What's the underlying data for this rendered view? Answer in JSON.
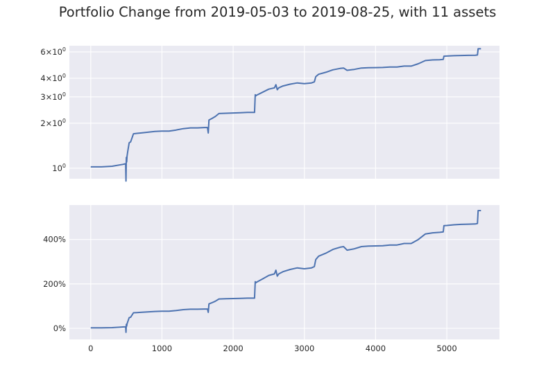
{
  "title": "Portfolio Change from 2019-05-03 to 2019-08-25, with 11 assets",
  "colors": {
    "background": "#eaeaf2",
    "grid": "#ffffff",
    "line": "#4c72b0",
    "text": "#262626"
  },
  "chart_data": [
    {
      "type": "line",
      "scale": "log",
      "series": [
        {
          "x": [
            0,
            150,
            300,
            400,
            450,
            490,
            495,
            500,
            505,
            510,
            520,
            540,
            560,
            600,
            650,
            700,
            800,
            900,
            1000,
            1100,
            1200,
            1300,
            1400,
            1500,
            1600,
            1640,
            1650,
            1660,
            1700,
            1750,
            1800,
            1900,
            2000,
            2100,
            2200,
            2300,
            2310,
            2320,
            2330,
            2400,
            2500,
            2580,
            2600,
            2620,
            2640,
            2700,
            2800,
            2900,
            3000,
            3050,
            3100,
            3140,
            3160,
            3200,
            3300,
            3400,
            3500,
            3550,
            3600,
            3700,
            3800,
            3900,
            4000,
            4100,
            4200,
            4300,
            4400,
            4500,
            4600,
            4700,
            4800,
            4900,
            4950,
            4960,
            5000,
            5100,
            5200,
            5300,
            5400,
            5430,
            5440,
            5450,
            5480
          ],
          "y": [
            1.02,
            1.02,
            1.03,
            1.05,
            1.06,
            1.07,
            0.82,
            1.18,
            1.1,
            1.2,
            1.3,
            1.48,
            1.5,
            1.7,
            1.71,
            1.72,
            1.74,
            1.76,
            1.77,
            1.77,
            1.8,
            1.84,
            1.86,
            1.86,
            1.87,
            1.87,
            1.72,
            2.1,
            2.15,
            2.22,
            2.32,
            2.33,
            2.34,
            2.35,
            2.36,
            2.36,
            3.1,
            3.05,
            3.08,
            3.2,
            3.38,
            3.45,
            3.62,
            3.35,
            3.45,
            3.55,
            3.65,
            3.72,
            3.68,
            3.7,
            3.72,
            3.78,
            4.1,
            4.25,
            4.38,
            4.55,
            4.65,
            4.68,
            4.52,
            4.58,
            4.68,
            4.7,
            4.71,
            4.72,
            4.75,
            4.75,
            4.82,
            4.82,
            5.0,
            5.25,
            5.3,
            5.32,
            5.34,
            5.62,
            5.63,
            5.66,
            5.68,
            5.69,
            5.7,
            5.72,
            6.3,
            6.3,
            6.3
          ]
        }
      ],
      "ylim": [
        0.85,
        6.6
      ],
      "xlim": [
        -300,
        5740
      ],
      "yticks": [
        {
          "value": 1,
          "label": "10",
          "exp": "0"
        },
        {
          "value": 2,
          "label": "2×10",
          "exp": "0"
        },
        {
          "value": 3,
          "label": "3×10",
          "exp": "0"
        },
        {
          "value": 4,
          "label": "4×10",
          "exp": "0"
        },
        {
          "value": 6,
          "label": "6×10",
          "exp": "0"
        }
      ],
      "grid": true
    },
    {
      "type": "line",
      "series": [
        {
          "x": [
            0,
            150,
            300,
            400,
            450,
            490,
            495,
            500,
            505,
            510,
            520,
            540,
            560,
            600,
            650,
            700,
            800,
            900,
            1000,
            1100,
            1200,
            1300,
            1400,
            1500,
            1600,
            1640,
            1650,
            1660,
            1700,
            1750,
            1800,
            1900,
            2000,
            2100,
            2200,
            2300,
            2310,
            2320,
            2330,
            2400,
            2500,
            2580,
            2600,
            2620,
            2640,
            2700,
            2800,
            2900,
            3000,
            3050,
            3100,
            3140,
            3160,
            3200,
            3300,
            3400,
            3500,
            3550,
            3600,
            3700,
            3800,
            3900,
            4000,
            4100,
            4200,
            4300,
            4400,
            4500,
            4600,
            4700,
            4800,
            4900,
            4950,
            4960,
            5000,
            5100,
            5200,
            5300,
            5400,
            5430,
            5440,
            5450,
            5480
          ],
          "y": [
            2,
            2,
            3,
            5,
            6,
            7,
            -18,
            18,
            10,
            20,
            30,
            48,
            50,
            70,
            71,
            72,
            74,
            76,
            77,
            77,
            80,
            84,
            86,
            86,
            87,
            87,
            72,
            110,
            115,
            122,
            132,
            133,
            134,
            135,
            136,
            136,
            210,
            205,
            208,
            220,
            238,
            245,
            262,
            235,
            245,
            255,
            265,
            272,
            268,
            270,
            272,
            278,
            310,
            325,
            338,
            355,
            365,
            368,
            352,
            358,
            368,
            370,
            371,
            372,
            375,
            375,
            382,
            382,
            400,
            425,
            430,
            432,
            434,
            462,
            463,
            466,
            468,
            469,
            470,
            472,
            530,
            530,
            530
          ]
        }
      ],
      "ylim": [
        -50,
        555
      ],
      "xlim": [
        -300,
        5740
      ],
      "yticks": [
        {
          "value": 0,
          "label": "0%"
        },
        {
          "value": 200,
          "label": "200%"
        },
        {
          "value": 400,
          "label": "400%"
        }
      ],
      "xticks": [
        {
          "value": 0,
          "label": "0"
        },
        {
          "value": 1000,
          "label": "1000"
        },
        {
          "value": 2000,
          "label": "2000"
        },
        {
          "value": 3000,
          "label": "3000"
        },
        {
          "value": 4000,
          "label": "4000"
        },
        {
          "value": 5000,
          "label": "5000"
        }
      ],
      "grid": true
    }
  ]
}
